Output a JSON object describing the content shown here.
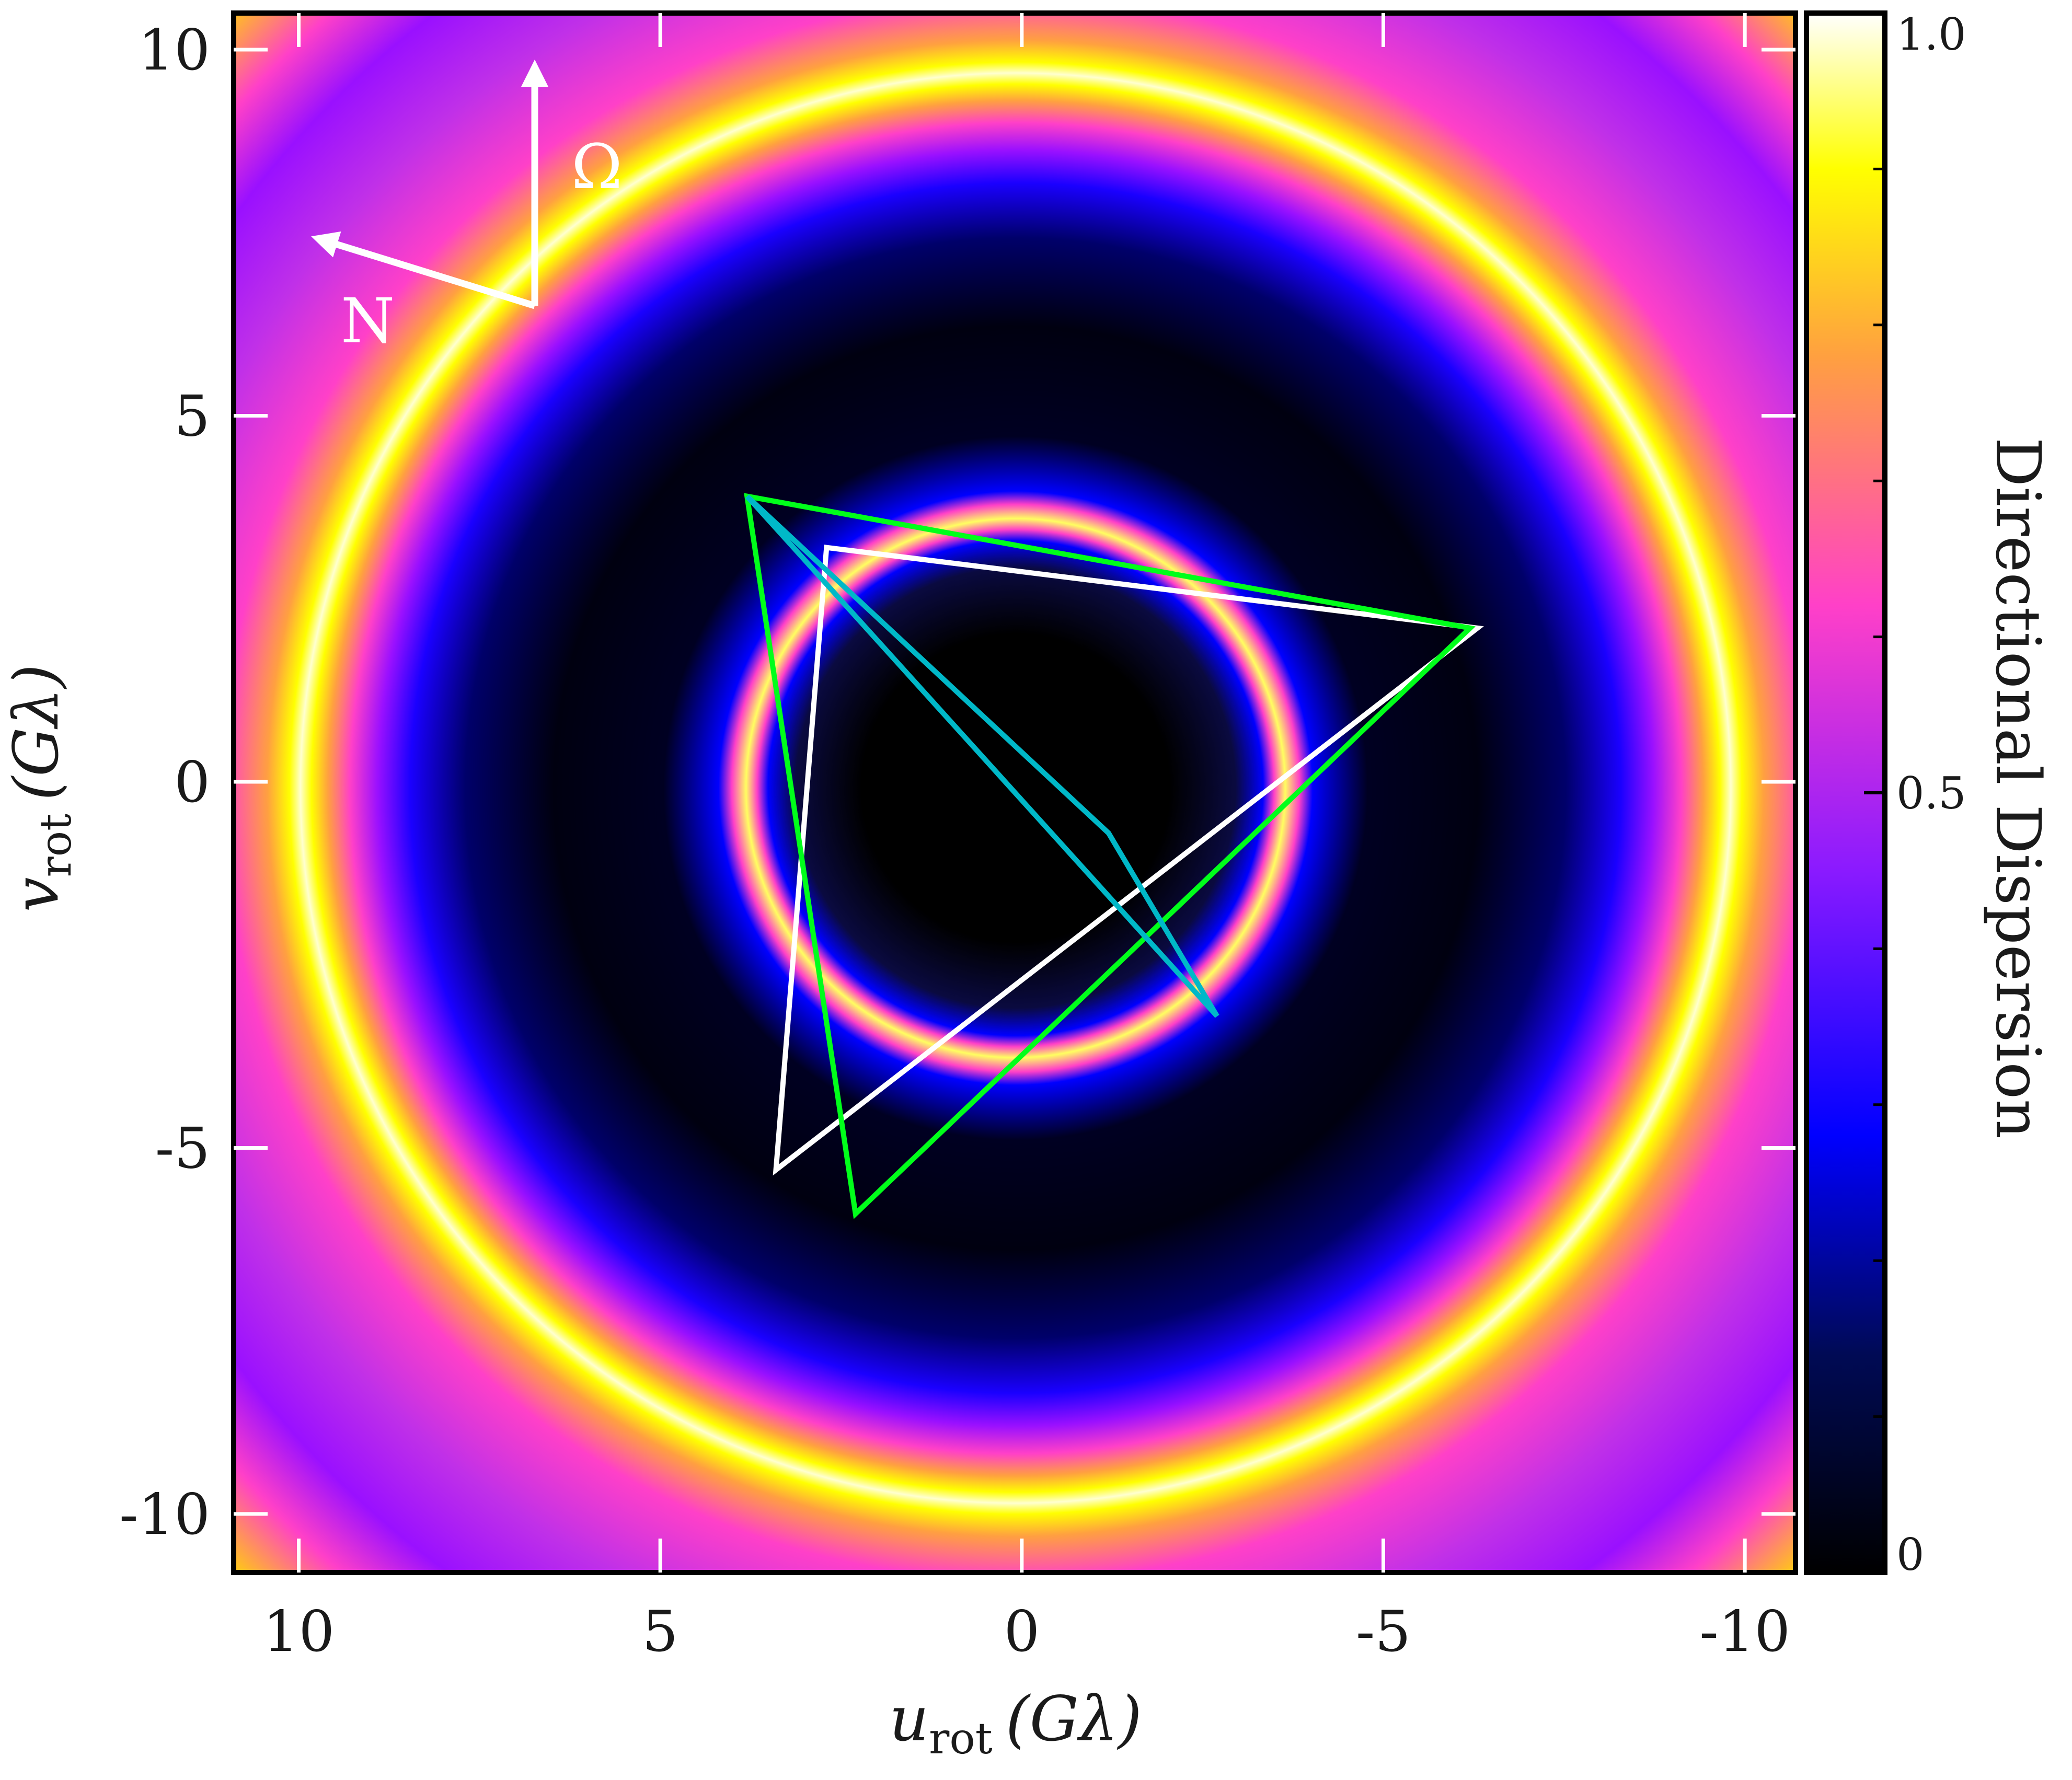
{
  "chart_data": {
    "type": "heatmap",
    "title": "",
    "xlabel": {
      "main": "u",
      "sub": "rot",
      "unit": "(Gλ)"
    },
    "ylabel": {
      "main": "v",
      "sub": "rot",
      "unit": "(Gλ)"
    },
    "xlim": [
      10.9,
      -10.7
    ],
    "ylim": [
      -10.8,
      10.5
    ],
    "x_ticks": [
      10,
      5,
      0,
      -5,
      -10
    ],
    "x_tick_labels": [
      "10",
      "5",
      "0",
      "-5",
      "-10"
    ],
    "y_ticks": [
      10,
      5,
      0,
      -5,
      -10
    ],
    "y_tick_labels": [
      "10",
      "5",
      "0",
      "-5",
      "-10"
    ],
    "grid": false,
    "heatmap": {
      "description_model": "radial ring pattern",
      "inner_dark_radius": 3.3,
      "inner_ring_radius": 3.6,
      "outer_ring_radius": 9.2,
      "colormap": [
        "#000000",
        "#000a55",
        "#0000ff",
        "#8a1aff",
        "#ff40c8",
        "#ffa040",
        "#ffff00",
        "#ffffff"
      ]
    },
    "colorbar": {
      "label": "Directional Dispersion",
      "range": [
        0,
        1.0
      ],
      "ticks": [
        0,
        0.5,
        1.0
      ],
      "tick_labels": [
        "0",
        "0.5",
        "1.0"
      ]
    },
    "series": [
      {
        "color": "#ffffff",
        "points": [
          [
            2.7,
            3.2
          ],
          [
            -6.3,
            2.1
          ],
          [
            3.4,
            -5.3
          ]
        ],
        "closed": true
      },
      {
        "color": "#00ff1a",
        "points": [
          [
            3.8,
            3.9
          ],
          [
            -6.2,
            2.1
          ],
          [
            2.3,
            -5.9
          ]
        ],
        "closed": true
      },
      {
        "color": "#00b8c8",
        "points": [
          [
            3.8,
            3.9
          ],
          [
            -1.2,
            -0.7
          ],
          [
            -2.7,
            -3.2
          ],
          [
            3.8,
            3.9
          ]
        ],
        "closed": false
      }
    ],
    "compass": {
      "labels": {
        "omega": "Ω",
        "north": "N"
      }
    }
  }
}
